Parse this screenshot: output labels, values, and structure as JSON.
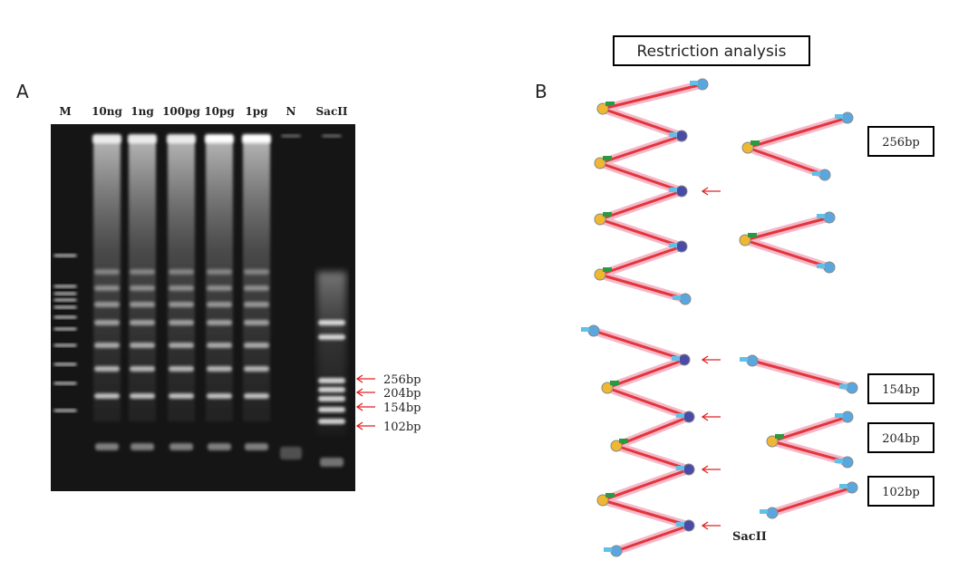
{
  "panel_a": {
    "label": "A",
    "lanes": [
      "M",
      "10ng",
      "1ng",
      "100pg",
      "10pg",
      "1pg",
      "N",
      "SacII"
    ],
    "band_labels": [
      "256bp",
      "204bp",
      "154bp",
      "102bp"
    ]
  },
  "panel_b": {
    "label": "B",
    "title": "Restriction analysis",
    "fragment_labels": [
      "256bp",
      "154bp",
      "204bp",
      "102bp"
    ],
    "enzyme": "SacII"
  }
}
